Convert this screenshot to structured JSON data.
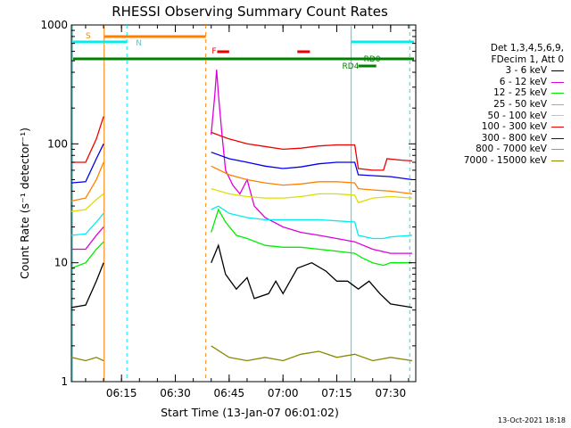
{
  "chart_data": {
    "type": "line",
    "title": "RHESSI Observing Summary Count Rates",
    "xlabel": "Start Time (13-Jan-07 06:01:02)",
    "ylabel": "Count Rate (s⁻¹ detector⁻¹)",
    "x_axis": {
      "start": "06:01:02",
      "end": "07:37:00",
      "ticks": [
        "06:15",
        "06:30",
        "06:45",
        "07:00",
        "07:15",
        "07:30"
      ]
    },
    "y_axis": {
      "scale": "log",
      "ylim": [
        1,
        1000
      ],
      "ticks": [
        "1",
        "10",
        "100",
        "1000"
      ]
    },
    "legend": {
      "header": [
        "Det 1,3,4,5,6,9,",
        "FDecim 1, Att 0"
      ],
      "placement": "right",
      "entries": [
        {
          "label": "3 - 6 keV",
          "color": "#000000"
        },
        {
          "label": "6 - 12 keV",
          "color": "#dd00dd"
        },
        {
          "label": "12 - 25 keV",
          "color": "#00ee00"
        },
        {
          "label": "25 - 50 keV",
          "color": "#00eeee"
        },
        {
          "label": "50 - 100 keV",
          "color": "#dddd00"
        },
        {
          "label": "100 - 300 keV",
          "color": "#ee0000"
        },
        {
          "label": "300 - 800 keV",
          "color": "#0000ee"
        },
        {
          "label": "800 - 7000 keV",
          "color": "#ff8000"
        },
        {
          "label": "7000 - 15000 keV",
          "color": "#888800"
        }
      ]
    },
    "flags": [
      {
        "label": "S",
        "color": "#ff8000"
      },
      {
        "label": "N",
        "color": "#00eeee"
      },
      {
        "label": "F",
        "color": "#ee0000"
      },
      {
        "label": "RD0",
        "color": "#008000"
      },
      {
        "label": "RD4",
        "color": "#008000"
      }
    ],
    "series": [
      {
        "name": "3 - 6 keV",
        "color": "#000000",
        "values": [
          [
            "06:01",
            4.2
          ],
          [
            "06:05",
            4.4
          ],
          [
            "06:08",
            7
          ],
          [
            "06:10",
            10
          ],
          [
            "06:40",
            10
          ],
          [
            "06:42",
            14
          ],
          [
            "06:44",
            8
          ],
          [
            "06:47",
            6
          ],
          [
            "06:50",
            7.5
          ],
          [
            "06:52",
            5
          ],
          [
            "06:56",
            5.5
          ],
          [
            "06:58",
            7
          ],
          [
            "07:00",
            5.5
          ],
          [
            "07:04",
            9
          ],
          [
            "07:08",
            10
          ],
          [
            "07:12",
            8.5
          ],
          [
            "07:15",
            7
          ],
          [
            "07:18",
            7
          ],
          [
            "07:21",
            6
          ],
          [
            "07:24",
            7
          ],
          [
            "07:27",
            5.5
          ],
          [
            "07:30",
            4.5
          ],
          [
            "07:34",
            4.3
          ],
          [
            "07:36",
            4.2
          ]
        ]
      },
      {
        "name": "6 - 12 keV",
        "color": "#dd00dd",
        "values": [
          [
            "06:01",
            13
          ],
          [
            "06:05",
            13
          ],
          [
            "06:08",
            17
          ],
          [
            "06:10",
            20
          ],
          [
            "06:40",
            120
          ],
          [
            "06:41",
            260
          ],
          [
            "06:41:30",
            420
          ],
          [
            "06:42",
            260
          ],
          [
            "06:43",
            120
          ],
          [
            "06:44",
            60
          ],
          [
            "06:46",
            45
          ],
          [
            "06:48",
            38
          ],
          [
            "06:50",
            50
          ],
          [
            "06:52",
            30
          ],
          [
            "06:55",
            24
          ],
          [
            "07:00",
            20
          ],
          [
            "07:05",
            18
          ],
          [
            "07:10",
            17
          ],
          [
            "07:15",
            16
          ],
          [
            "07:20",
            15
          ],
          [
            "07:25",
            13
          ],
          [
            "07:30",
            12
          ],
          [
            "07:36",
            12
          ]
        ]
      },
      {
        "name": "12 - 25 keV",
        "color": "#00ee00",
        "values": [
          [
            "06:01",
            9
          ],
          [
            "06:05",
            10
          ],
          [
            "06:08",
            13
          ],
          [
            "06:10",
            15
          ],
          [
            "06:40",
            18
          ],
          [
            "06:42",
            28
          ],
          [
            "06:44",
            22
          ],
          [
            "06:47",
            17
          ],
          [
            "06:50",
            16
          ],
          [
            "06:55",
            14
          ],
          [
            "07:00",
            13.5
          ],
          [
            "07:05",
            13.5
          ],
          [
            "07:10",
            13
          ],
          [
            "07:15",
            12.5
          ],
          [
            "07:20",
            12
          ],
          [
            "07:22",
            11
          ],
          [
            "07:25",
            10
          ],
          [
            "07:28",
            9.5
          ],
          [
            "07:30",
            10
          ],
          [
            "07:36",
            10
          ]
        ]
      },
      {
        "name": "25 - 50 keV",
        "color": "#00eeee",
        "values": [
          [
            "06:01",
            17
          ],
          [
            "06:05",
            17.5
          ],
          [
            "06:08",
            22
          ],
          [
            "06:10",
            26
          ],
          [
            "06:40",
            28
          ],
          [
            "06:42",
            30
          ],
          [
            "06:45",
            26
          ],
          [
            "06:50",
            24
          ],
          [
            "06:55",
            23
          ],
          [
            "07:00",
            23
          ],
          [
            "07:05",
            23
          ],
          [
            "07:10",
            23
          ],
          [
            "07:15",
            22.5
          ],
          [
            "07:20",
            22
          ],
          [
            "07:21",
            17
          ],
          [
            "07:25",
            16
          ],
          [
            "07:28",
            16
          ],
          [
            "07:30",
            16.5
          ],
          [
            "07:36",
            17
          ]
        ]
      },
      {
        "name": "50 - 100 keV",
        "color": "#dddd00",
        "values": [
          [
            "06:01",
            27
          ],
          [
            "06:05",
            28
          ],
          [
            "06:08",
            34
          ],
          [
            "06:10",
            38
          ],
          [
            "06:40",
            42
          ],
          [
            "06:45",
            38
          ],
          [
            "06:50",
            36
          ],
          [
            "06:55",
            35
          ],
          [
            "07:00",
            35
          ],
          [
            "07:05",
            36
          ],
          [
            "07:10",
            38
          ],
          [
            "07:15",
            38
          ],
          [
            "07:20",
            37
          ],
          [
            "07:21",
            32
          ],
          [
            "07:25",
            35
          ],
          [
            "07:30",
            36
          ],
          [
            "07:36",
            35
          ]
        ]
      },
      {
        "name": "100 - 300 keV",
        "color": "#ee0000",
        "values": [
          [
            "06:01",
            70
          ],
          [
            "06:05",
            70
          ],
          [
            "06:08",
            110
          ],
          [
            "06:10",
            170
          ],
          [
            "06:40",
            125
          ],
          [
            "06:45",
            110
          ],
          [
            "06:50",
            100
          ],
          [
            "06:55",
            95
          ],
          [
            "07:00",
            90
          ],
          [
            "07:05",
            92
          ],
          [
            "07:10",
            96
          ],
          [
            "07:15",
            98
          ],
          [
            "07:20",
            98
          ],
          [
            "07:21",
            62
          ],
          [
            "07:25",
            60
          ],
          [
            "07:28",
            60
          ],
          [
            "07:29",
            75
          ],
          [
            "07:33",
            73
          ],
          [
            "07:36",
            72
          ]
        ]
      },
      {
        "name": "300 - 800 keV",
        "color": "#0000ee",
        "values": [
          [
            "06:01",
            47
          ],
          [
            "06:05",
            48
          ],
          [
            "06:08",
            75
          ],
          [
            "06:10",
            100
          ],
          [
            "06:40",
            85
          ],
          [
            "06:45",
            75
          ],
          [
            "06:50",
            70
          ],
          [
            "06:55",
            65
          ],
          [
            "07:00",
            62
          ],
          [
            "07:05",
            64
          ],
          [
            "07:10",
            68
          ],
          [
            "07:15",
            70
          ],
          [
            "07:20",
            70
          ],
          [
            "07:21",
            55
          ],
          [
            "07:25",
            54
          ],
          [
            "07:30",
            53
          ],
          [
            "07:36",
            50
          ]
        ]
      },
      {
        "name": "800 - 7000 keV",
        "color": "#ff8000",
        "values": [
          [
            "06:01",
            33
          ],
          [
            "06:05",
            35
          ],
          [
            "06:08",
            50
          ],
          [
            "06:10",
            70
          ],
          [
            "06:40",
            65
          ],
          [
            "06:45",
            55
          ],
          [
            "06:50",
            50
          ],
          [
            "06:55",
            47
          ],
          [
            "07:00",
            45
          ],
          [
            "07:05",
            46
          ],
          [
            "07:10",
            48
          ],
          [
            "07:15",
            48
          ],
          [
            "07:20",
            47
          ],
          [
            "07:21",
            42
          ],
          [
            "07:25",
            41
          ],
          [
            "07:30",
            40
          ],
          [
            "07:36",
            38
          ]
        ]
      },
      {
        "name": "7000 - 15000 keV",
        "color": "#888800",
        "values": [
          [
            "06:01",
            1.6
          ],
          [
            "06:05",
            1.5
          ],
          [
            "06:08",
            1.6
          ],
          [
            "06:10",
            1.5
          ],
          [
            "06:40",
            2.0
          ],
          [
            "06:45",
            1.6
          ],
          [
            "06:50",
            1.5
          ],
          [
            "06:55",
            1.6
          ],
          [
            "07:00",
            1.5
          ],
          [
            "07:05",
            1.7
          ],
          [
            "07:10",
            1.8
          ],
          [
            "07:15",
            1.6
          ],
          [
            "07:20",
            1.7
          ],
          [
            "07:25",
            1.5
          ],
          [
            "07:30",
            1.6
          ],
          [
            "07:36",
            1.5
          ]
        ]
      }
    ]
  },
  "footer_date": "13-Oct-2021 18:18"
}
